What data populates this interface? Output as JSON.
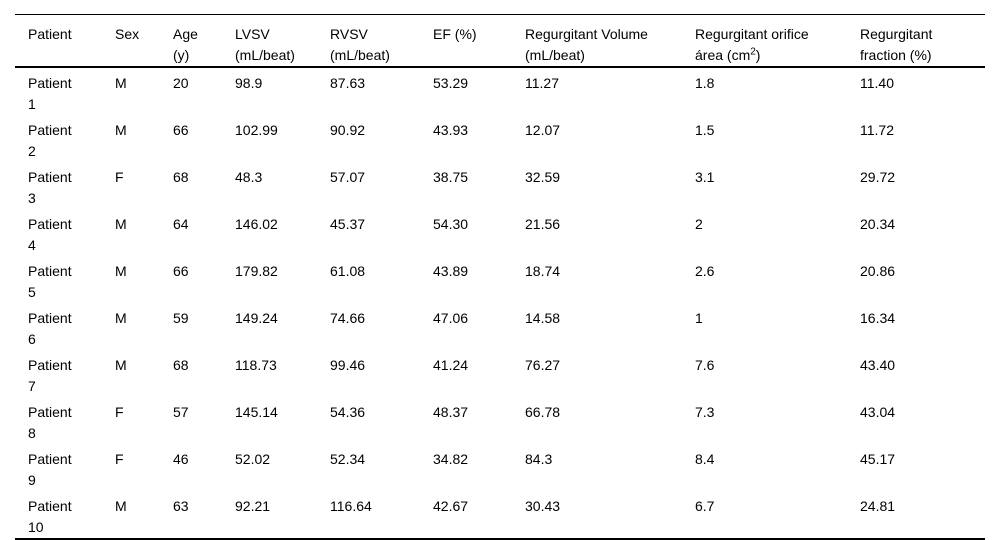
{
  "table": {
    "columns": [
      {
        "id": "patient",
        "label": "Patient"
      },
      {
        "id": "sex",
        "label": "Sex"
      },
      {
        "id": "age",
        "label": "Age\n(y)"
      },
      {
        "id": "lvsv",
        "label": "LVSV\n(mL/beat)"
      },
      {
        "id": "rvsv",
        "label": "RVSV\n(mL/beat)"
      },
      {
        "id": "ef",
        "label": "EF (%)"
      },
      {
        "id": "regurgitant-volume",
        "label": "Regurgitant Volume\n(mL/beat)"
      },
      {
        "id": "regurgitant-orifice-area",
        "label": "Regurgitant orifice\nárea (cm",
        "sup": "2",
        "post": ")"
      },
      {
        "id": "regurgitant-fraction",
        "label": "Regurgitant\nfraction (%)"
      }
    ],
    "rows": [
      [
        "Patient\n1",
        "M",
        "20",
        "98.9",
        "87.63",
        "53.29",
        "11.27",
        "1.8",
        "11.40"
      ],
      [
        "Patient\n2",
        "M",
        "66",
        "102.99",
        "90.92",
        "43.93",
        "12.07",
        "1.5",
        "11.72"
      ],
      [
        "Patient\n3",
        "F",
        "68",
        "48.3",
        "57.07",
        "38.75",
        "32.59",
        "3.1",
        "29.72"
      ],
      [
        "Patient\n4",
        "M",
        "64",
        "146.02",
        "45.37",
        "54.30",
        "21.56",
        "2",
        "20.34"
      ],
      [
        "Patient\n5",
        "M",
        "66",
        "179.82",
        "61.08",
        "43.89",
        "18.74",
        "2.6",
        "20.86"
      ],
      [
        "Patient\n6",
        "M",
        "59",
        "149.24",
        "74.66",
        "47.06",
        "14.58",
        "1",
        "16.34"
      ],
      [
        "Patient\n7",
        "M",
        "68",
        "118.73",
        "99.46",
        "41.24",
        "76.27",
        "7.6",
        "43.40"
      ],
      [
        "Patient\n8",
        "F",
        "57",
        "145.14",
        "54.36",
        "48.37",
        "66.78",
        "7.3",
        "43.04"
      ],
      [
        "Patient\n9",
        "F",
        "46",
        "52.02",
        "52.34",
        "34.82",
        "84.3",
        "8.4",
        "45.17"
      ],
      [
        "Patient\n10",
        "M",
        "63",
        "92.21",
        "116.64",
        "42.67",
        "30.43",
        "6.7",
        "24.81"
      ]
    ]
  }
}
